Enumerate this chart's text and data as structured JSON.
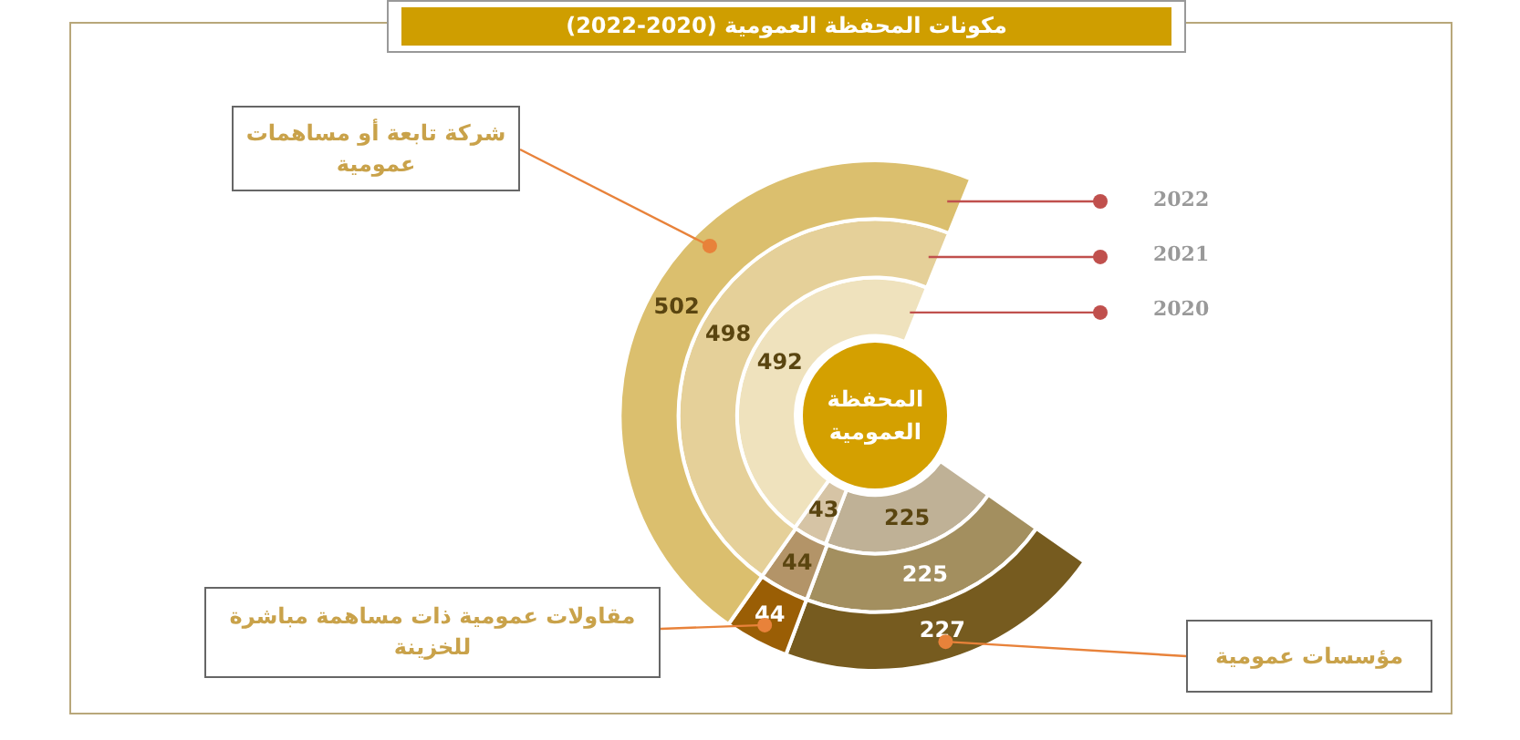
{
  "chart_data": {
    "type": "donut",
    "title": "مكونات المحفظة العمومية (2020-2022)",
    "categories": [
      "مؤسسات عمومية",
      "مقاولات عمومية ذات مساهمة مباشرة للخزينة",
      "شركة تابعة أو مساهمات عمومية"
    ],
    "series": [
      {
        "name": "2022",
        "colors": [
          "#765b1f",
          "#9a5e05",
          "#dbbf6e"
        ],
        "values": [
          227,
          44,
          502
        ]
      },
      {
        "name": "2021",
        "colors": [
          "#a38f5f",
          "#b39468",
          "#e5d099"
        ],
        "values": [
          225,
          44,
          498
        ]
      },
      {
        "name": "2020",
        "colors": [
          "#bfb196",
          "#d6c4a5",
          "#efe2bd"
        ],
        "values": [
          225,
          43,
          492
        ]
      }
    ],
    "data_labels": true,
    "legend": false,
    "annotations": [
      "المحفظة العمومية"
    ]
  }
}
